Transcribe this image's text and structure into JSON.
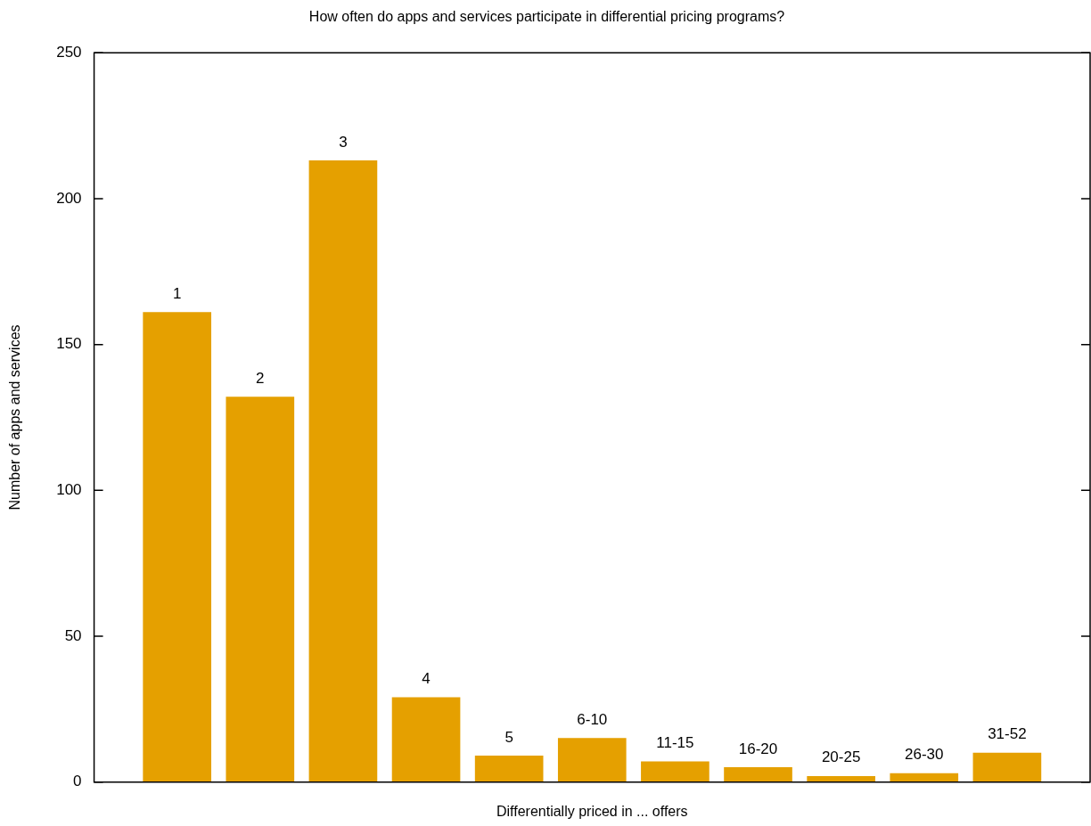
{
  "chart_data": {
    "type": "bar",
    "title": "How often do apps and services participate in differential pricing programs?",
    "xlabel": "Differentially priced in ... offers",
    "ylabel": "Number of apps and services",
    "categories": [
      "1",
      "2",
      "3",
      "4",
      "5",
      "6-10",
      "11-15",
      "16-20",
      "20-25",
      "26-30",
      "31-52"
    ],
    "values": [
      161,
      132,
      213,
      29,
      9,
      15,
      7,
      5,
      2,
      3,
      10
    ],
    "color": "#e5a000",
    "ylim": [
      0,
      250
    ],
    "yticks": [
      0,
      50,
      100,
      150,
      200,
      250
    ],
    "grid": false,
    "legend": false
  }
}
